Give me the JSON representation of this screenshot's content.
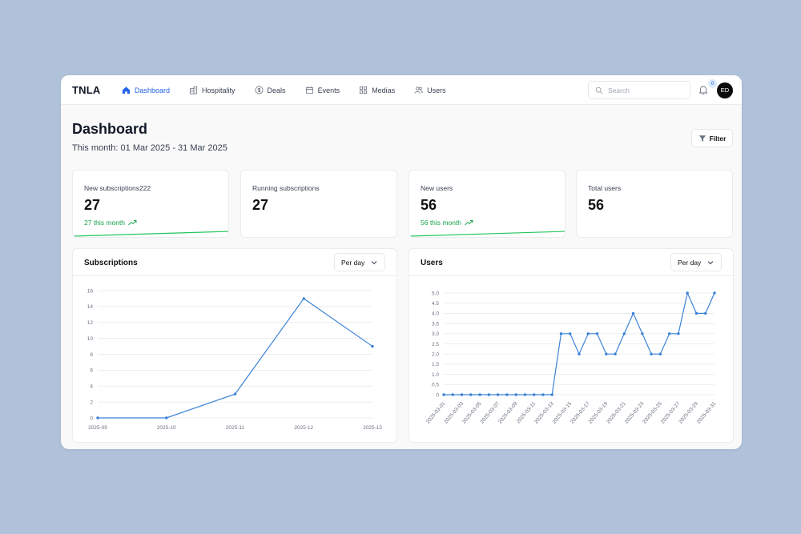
{
  "app": {
    "logo": "TNLA"
  },
  "nav": [
    {
      "label": "Dashboard",
      "icon": "home-icon",
      "active": true
    },
    {
      "label": "Hospitality",
      "icon": "hotel-icon",
      "active": false
    },
    {
      "label": "Deals",
      "icon": "dollar-icon",
      "active": false
    },
    {
      "label": "Events",
      "icon": "calendar-icon",
      "active": false
    },
    {
      "label": "Medias",
      "icon": "grid-icon",
      "active": false
    },
    {
      "label": "Users",
      "icon": "users-icon",
      "active": false
    }
  ],
  "header": {
    "search_placeholder": "Search",
    "notification_count": "0",
    "avatar_initials": "ED"
  },
  "page": {
    "title": "Dashboard",
    "subtitle": "This month: 01 Mar 2025 - 31 Mar 2025",
    "filter_label": "Filter"
  },
  "stats": [
    {
      "label": "New subscriptions222",
      "value": "27",
      "trend": "27 this month",
      "has_trend": true
    },
    {
      "label": "Running subscriptions",
      "value": "27",
      "trend": "",
      "has_trend": false
    },
    {
      "label": "New users",
      "value": "56",
      "trend": "56 this month",
      "has_trend": true
    },
    {
      "label": "Total users",
      "value": "56",
      "trend": "",
      "has_trend": false
    }
  ],
  "panels": {
    "subscriptions": {
      "title": "Subscriptions",
      "period": "Per day"
    },
    "users": {
      "title": "Users",
      "period": "Per day"
    }
  },
  "colors": {
    "accent": "#2563eb",
    "line": "#3b82d6",
    "trend": "#16a34a"
  },
  "chart_data": [
    {
      "type": "line",
      "title": "Subscriptions",
      "x": [
        "2025-09",
        "2025-10",
        "2025-11",
        "2025-12",
        "2025-13"
      ],
      "y": [
        0,
        0,
        3,
        15,
        9
      ],
      "ylim": [
        0,
        16
      ],
      "yticks": [
        0,
        2,
        4,
        6,
        8,
        10,
        12,
        14,
        16
      ],
      "grid": true
    },
    {
      "type": "line",
      "title": "Users",
      "x": [
        "2025-03-01",
        "2025-03-02",
        "2025-03-03",
        "2025-03-04",
        "2025-03-05",
        "2025-03-06",
        "2025-03-07",
        "2025-03-08",
        "2025-03-09",
        "2025-03-10",
        "2025-03-11",
        "2025-03-12",
        "2025-03-13",
        "2025-03-14",
        "2025-03-15",
        "2025-03-16",
        "2025-03-17",
        "2025-03-18",
        "2025-03-19",
        "2025-03-20",
        "2025-03-21",
        "2025-03-22",
        "2025-03-23",
        "2025-03-24",
        "2025-03-25",
        "2025-03-26",
        "2025-03-27",
        "2025-03-28",
        "2025-03-29",
        "2025-03-30",
        "2025-03-31"
      ],
      "x_labeled": [
        "2025-03-01",
        "2025-03-03",
        "2025-03-05",
        "2025-03-07",
        "2025-03-09",
        "2025-03-11",
        "2025-03-13",
        "2025-03-15",
        "2025-03-17",
        "2025-03-19",
        "2025-03-21",
        "2025-03-23",
        "2025-03-25",
        "2025-03-27",
        "2025-03-29",
        "2025-03-31"
      ],
      "y": [
        0,
        0,
        0,
        0,
        0,
        0,
        0,
        0,
        0,
        0,
        0,
        0,
        0,
        3,
        3,
        2,
        3,
        3,
        2,
        2,
        3,
        4,
        3,
        2,
        2,
        3,
        3,
        5,
        4,
        4,
        5
      ],
      "ylim": [
        0,
        5
      ],
      "yticks": [
        "0",
        "0.5",
        "1.0",
        "1.5",
        "2.0",
        "2.5",
        "3.0",
        "3.5",
        "4.0",
        "4.5",
        "5.0"
      ],
      "grid": true
    }
  ]
}
